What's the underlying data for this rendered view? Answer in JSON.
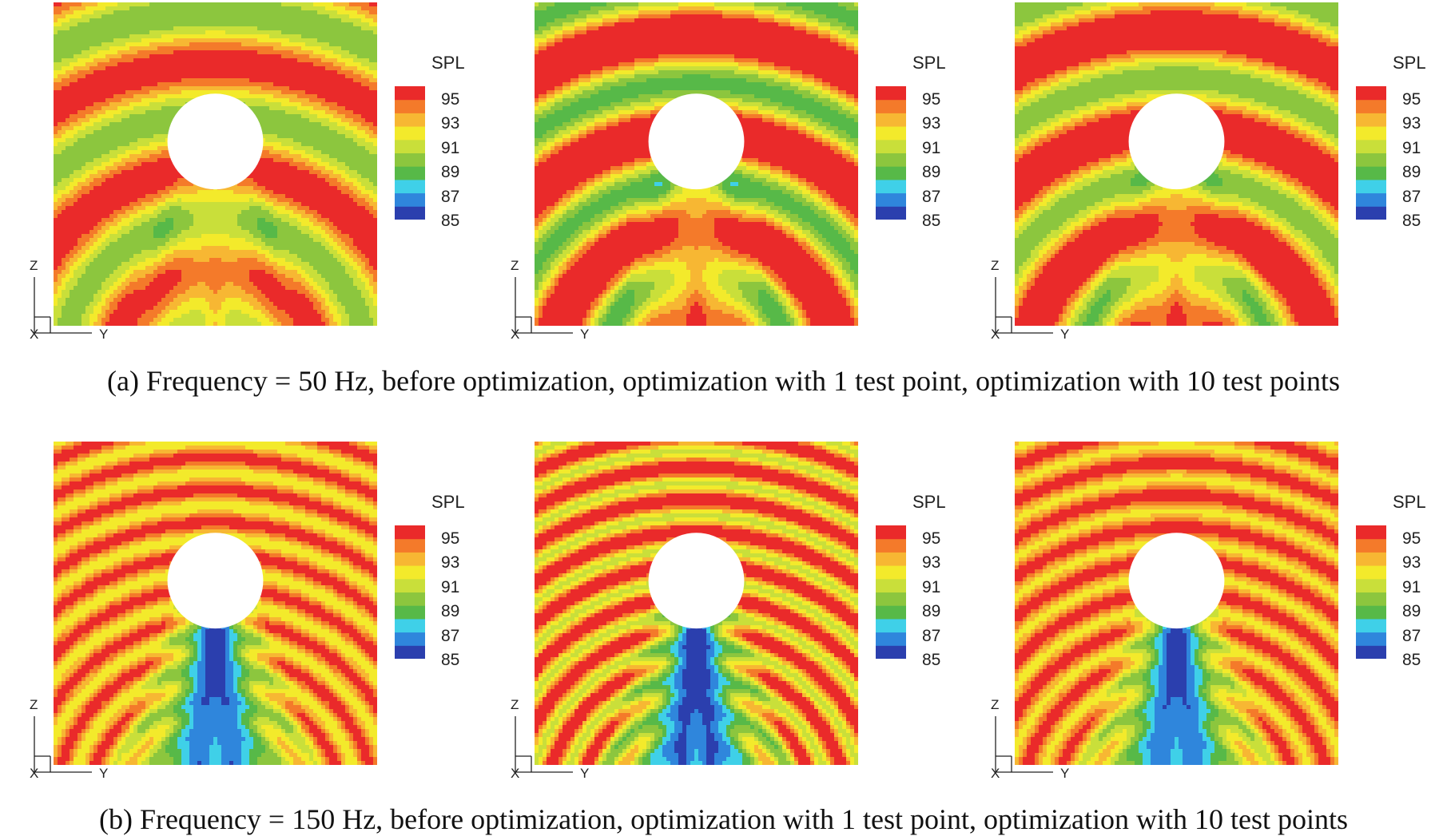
{
  "chart_data": [
    {
      "type": "heatmap",
      "row": "a",
      "panel": "before optimization",
      "frequency_hz": 50,
      "colorbar": {
        "title": "SPL",
        "ticks": [
          95,
          93,
          91,
          89,
          87,
          85
        ],
        "range": [
          85,
          95
        ]
      },
      "axes": {
        "vertical": "Z",
        "horizontal": "Y",
        "out_of_plane": "X"
      },
      "pattern": {
        "wavelength": 0.32,
        "phase": 0.0,
        "amp": 3.0,
        "base": 92.2,
        "rear_beam": 0.6,
        "rear_level": 91.2,
        "drift": 0.4
      }
    },
    {
      "type": "heatmap",
      "row": "a",
      "panel": "optimization with 1 test point",
      "frequency_hz": 50,
      "colorbar": {
        "title": "SPL",
        "ticks": [
          95,
          93,
          91,
          89,
          87,
          85
        ],
        "range": [
          85,
          95
        ]
      },
      "axes": {
        "vertical": "Z",
        "horizontal": "Y",
        "out_of_plane": "X"
      },
      "pattern": {
        "wavelength": 0.3,
        "phase": 0.5,
        "amp": 4.2,
        "base": 92.8,
        "rear_beam": 0.8,
        "rear_level": 92.2,
        "drift": 0.2
      }
    },
    {
      "type": "heatmap",
      "row": "a",
      "panel": "optimization with 10 test points",
      "frequency_hz": 50,
      "colorbar": {
        "title": "SPL",
        "ticks": [
          95,
          93,
          91,
          89,
          87,
          85
        ],
        "range": [
          85,
          95
        ]
      },
      "axes": {
        "vertical": "Z",
        "horizontal": "Y",
        "out_of_plane": "X"
      },
      "pattern": {
        "wavelength": 0.3,
        "phase": 0.45,
        "amp": 3.6,
        "base": 92.8,
        "rear_beam": 0.7,
        "rear_level": 92.0,
        "drift": 0.2
      }
    },
    {
      "type": "heatmap",
      "row": "b",
      "panel": "before optimization",
      "frequency_hz": 150,
      "colorbar": {
        "title": "SPL",
        "ticks": [
          95,
          93,
          91,
          89,
          87,
          85
        ],
        "range": [
          85,
          95
        ]
      },
      "axes": {
        "vertical": "Z",
        "horizontal": "Y",
        "out_of_plane": "X"
      },
      "pattern": {
        "wavelength": 0.1,
        "phase": 0.0,
        "amp": 1.6,
        "base": 93.0,
        "rear_beam": 1.0,
        "rear_level": 85.3,
        "drift": 0.0
      }
    },
    {
      "type": "heatmap",
      "row": "b",
      "panel": "optimization with 1 test point",
      "frequency_hz": 150,
      "colorbar": {
        "title": "SPL",
        "ticks": [
          95,
          93,
          91,
          89,
          87,
          85
        ],
        "range": [
          85,
          95
        ]
      },
      "axes": {
        "vertical": "Z",
        "horizontal": "Y",
        "out_of_plane": "X"
      },
      "pattern": {
        "wavelength": 0.1,
        "phase": 0.3,
        "amp": 2.3,
        "base": 93.0,
        "rear_beam": 1.0,
        "rear_level": 85.0,
        "drift": 0.0
      }
    },
    {
      "type": "heatmap",
      "row": "b",
      "panel": "optimization with 10 test points",
      "frequency_hz": 150,
      "colorbar": {
        "title": "SPL",
        "ticks": [
          95,
          93,
          91,
          89,
          87,
          85
        ],
        "range": [
          85,
          95
        ]
      },
      "axes": {
        "vertical": "Z",
        "horizontal": "Y",
        "out_of_plane": "X"
      },
      "pattern": {
        "wavelength": 0.1,
        "phase": 0.15,
        "amp": 1.5,
        "base": 93.2,
        "rear_beam": 1.0,
        "rear_level": 85.3,
        "drift": 0.0
      }
    }
  ],
  "colormap": [
    "#2b3fae",
    "#2f86dc",
    "#3fd0e8",
    "#57b948",
    "#8cc63e",
    "#c9df3a",
    "#f3ea2b",
    "#f7b733",
    "#f47a2a",
    "#ea2a2a"
  ],
  "colorbar_title": "SPL",
  "ticks": [
    "95",
    "93",
    "91",
    "89",
    "87",
    "85"
  ],
  "axis_labels": {
    "z": "Z",
    "y": "Y",
    "x": "X"
  },
  "captions": {
    "a": "(a) Frequency = 50 Hz, before optimization, optimization with 1 test point, optimization with 10 test points",
    "b": "(b) Frequency = 150 Hz, before optimization, optimization with 1 test point, optimization with 10 test points"
  }
}
